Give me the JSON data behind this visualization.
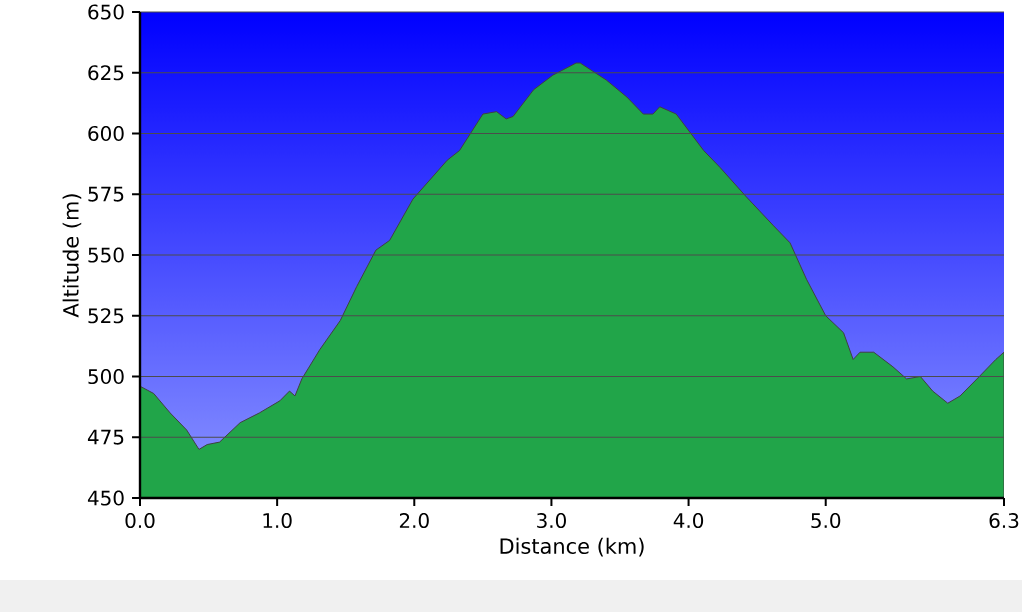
{
  "chart_data": {
    "type": "area",
    "xlabel": "Distance   (km)",
    "ylabel": "Altitude (m)",
    "x": [
      0,
      0.1,
      0.22,
      0.34,
      0.43,
      0.49,
      0.58,
      0.73,
      0.87,
      1.02,
      1.09,
      1.13,
      1.18,
      1.31,
      1.46,
      1.58,
      1.72,
      1.82,
      1.99,
      2.24,
      2.33,
      2.5,
      2.6,
      2.67,
      2.72,
      2.87,
      3.01,
      3.18,
      3.21,
      3.4,
      3.55,
      3.67,
      3.74,
      3.79,
      3.91,
      4.11,
      4.23,
      4.42,
      4.62,
      4.74,
      4.86,
      5.0,
      5.13,
      5.2,
      5.25,
      5.35,
      5.49,
      5.59,
      5.69,
      5.78,
      5.89,
      5.98,
      6.12,
      6.24,
      6.3
    ],
    "series": [
      {
        "color": "#21a549",
        "values": [
          496,
          493,
          485,
          478,
          470,
          472,
          473,
          481,
          485,
          490,
          494,
          492,
          499,
          511,
          523,
          537,
          552,
          556,
          573,
          589,
          593,
          608,
          609,
          606,
          607,
          618,
          624,
          629,
          629,
          622,
          615,
          608,
          608,
          611,
          608,
          593,
          586,
          574,
          562,
          555,
          540,
          525,
          518,
          507,
          510,
          510,
          504,
          499,
          500,
          494,
          489,
          492,
          500,
          507,
          510
        ]
      }
    ],
    "xlim": [
      0,
      6.3
    ],
    "ylim": [
      450,
      650
    ],
    "xticks": [
      {
        "value": 0,
        "label": "0.0"
      },
      {
        "value": 1,
        "label": "1.0"
      },
      {
        "value": 2,
        "label": "2.0"
      },
      {
        "value": 3,
        "label": "3.0"
      },
      {
        "value": 4,
        "label": "4.0"
      },
      {
        "value": 5,
        "label": "5.0"
      },
      {
        "value": 6.3,
        "label": "6.3"
      }
    ],
    "yticks": [
      450,
      475,
      500,
      525,
      550,
      575,
      600,
      625,
      650
    ],
    "grid": "y"
  }
}
